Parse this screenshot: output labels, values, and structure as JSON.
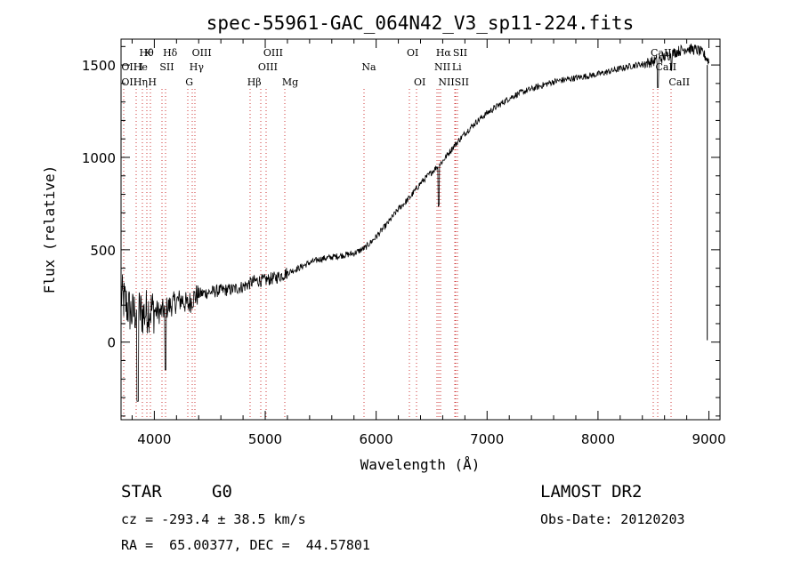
{
  "chart_data": {
    "type": "line",
    "title": "spec-55961-GAC_064N42_V3_sp11-224.fits",
    "xlabel": "Wavelength (Å)",
    "ylabel": "Flux (relative)",
    "xlim": [
      3700,
      9100
    ],
    "ylim": [
      -420,
      1640
    ],
    "x_ticks": [
      4000,
      5000,
      6000,
      7000,
      8000,
      9000
    ],
    "y_ticks": [
      0,
      500,
      1000,
      1500
    ],
    "series": [
      {
        "name": "flux",
        "x": [
          3700,
          3750,
          3800,
          3850,
          3900,
          3950,
          4000,
          4050,
          4100,
          4150,
          4200,
          4250,
          4300,
          4350,
          4400,
          4500,
          4600,
          4700,
          4800,
          4900,
          5000,
          5100,
          5200,
          5300,
          5400,
          5500,
          5600,
          5700,
          5800,
          5900,
          6000,
          6100,
          6200,
          6300,
          6400,
          6500,
          6600,
          6700,
          6800,
          6900,
          7000,
          7100,
          7200,
          7300,
          7400,
          7500,
          7600,
          7700,
          7800,
          7900,
          8000,
          8100,
          8200,
          8300,
          8400,
          8500,
          8550,
          8600,
          8700,
          8800,
          8900,
          8950,
          9000
        ],
        "values": [
          250,
          200,
          150,
          180,
          150,
          180,
          170,
          160,
          180,
          200,
          220,
          230,
          200,
          240,
          260,
          270,
          280,
          285,
          300,
          330,
          335,
          350,
          375,
          400,
          430,
          450,
          460,
          470,
          480,
          510,
          570,
          640,
          720,
          780,
          860,
          920,
          980,
          1060,
          1130,
          1190,
          1240,
          1280,
          1320,
          1350,
          1370,
          1390,
          1410,
          1420,
          1430,
          1440,
          1450,
          1465,
          1480,
          1495,
          1505,
          1520,
          1530,
          1545,
          1570,
          1590,
          1580,
          1560,
          1520
        ]
      }
    ],
    "lines_row1": [
      {
        "w": 3889,
        "label": "Hθ"
      },
      {
        "w": 3934,
        "label": "K"
      },
      {
        "w": 4102,
        "label": "Hδ"
      },
      {
        "w": 4363,
        "label": "OIII"
      },
      {
        "w": 5007,
        "label": "OIII"
      },
      {
        "w": 6300,
        "label": "OI"
      },
      {
        "w": 6563,
        "label": "Hα"
      },
      {
        "w": 6716,
        "label": "SII"
      },
      {
        "w": 8498,
        "label": "CaII"
      }
    ],
    "lines_row2": [
      {
        "w": 3727,
        "label": "OII"
      },
      {
        "w": 3835,
        "label": "He"
      },
      {
        "w": 3889,
        "label": "I"
      },
      {
        "w": 4072,
        "label": "SII"
      },
      {
        "w": 4340,
        "label": "Hγ"
      },
      {
        "w": 4959,
        "label": "OIII"
      },
      {
        "w": 5893,
        "label": "Na"
      },
      {
        "w": 6548,
        "label": "NII"
      },
      {
        "w": 6708,
        "label": "Li"
      },
      {
        "w": 8542,
        "label": "CaII"
      }
    ],
    "lines_row3": [
      {
        "w": 3727,
        "label": "OII"
      },
      {
        "w": 3835,
        "label": "Hη"
      },
      {
        "w": 3968,
        "label": "H"
      },
      {
        "w": 4304,
        "label": "G"
      },
      {
        "w": 4861,
        "label": "Hβ"
      },
      {
        "w": 5175,
        "label": "Mg"
      },
      {
        "w": 6364,
        "label": "OI"
      },
      {
        "w": 6584,
        "label": "NII"
      },
      {
        "w": 6731,
        "label": "SII"
      },
      {
        "w": 8662,
        "label": "CaII"
      }
    ]
  },
  "info": {
    "object_class": "STAR",
    "subclass": "G0",
    "survey": "LAMOST DR2",
    "redshift": "cz = -293.4 ± 38.5 km/s",
    "obs_date": "Obs-Date: 20120203",
    "coords": "RA =  65.00377, DEC =  44.57801"
  }
}
